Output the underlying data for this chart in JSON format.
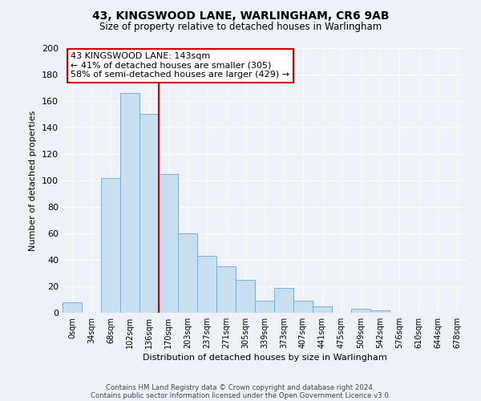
{
  "title": "43, KINGSWOOD LANE, WARLINGHAM, CR6 9AB",
  "subtitle": "Size of property relative to detached houses in Warlingham",
  "xlabel": "Distribution of detached houses by size in Warlingham",
  "ylabel": "Number of detached properties",
  "bar_labels": [
    "0sqm",
    "34sqm",
    "68sqm",
    "102sqm",
    "136sqm",
    "170sqm",
    "203sqm",
    "237sqm",
    "271sqm",
    "305sqm",
    "339sqm",
    "373sqm",
    "407sqm",
    "441sqm",
    "475sqm",
    "509sqm",
    "542sqm",
    "576sqm",
    "610sqm",
    "644sqm",
    "678sqm"
  ],
  "bar_heights": [
    8,
    0,
    102,
    166,
    150,
    105,
    60,
    43,
    35,
    25,
    9,
    19,
    9,
    5,
    0,
    3,
    2,
    0,
    0,
    0,
    0
  ],
  "bar_color": "#c8dff0",
  "bar_edge_color": "#7ab0d4",
  "vline_x": 4.5,
  "vline_color": "#cc0000",
  "annotation_line1": "43 KINGSWOOD LANE: 143sqm",
  "annotation_line2": "← 41% of detached houses are smaller (305)",
  "annotation_line3": "58% of semi-detached houses are larger (429) →",
  "annotation_box_color": "#ffffff",
  "annotation_box_edge": "#cc0000",
  "ylim": [
    0,
    200
  ],
  "yticks": [
    0,
    20,
    40,
    60,
    80,
    100,
    120,
    140,
    160,
    180,
    200
  ],
  "footer_line1": "Contains HM Land Registry data © Crown copyright and database right 2024.",
  "footer_line2": "Contains public sector information licensed under the Open Government Licence v3.0.",
  "background_color": "#eef2f8"
}
